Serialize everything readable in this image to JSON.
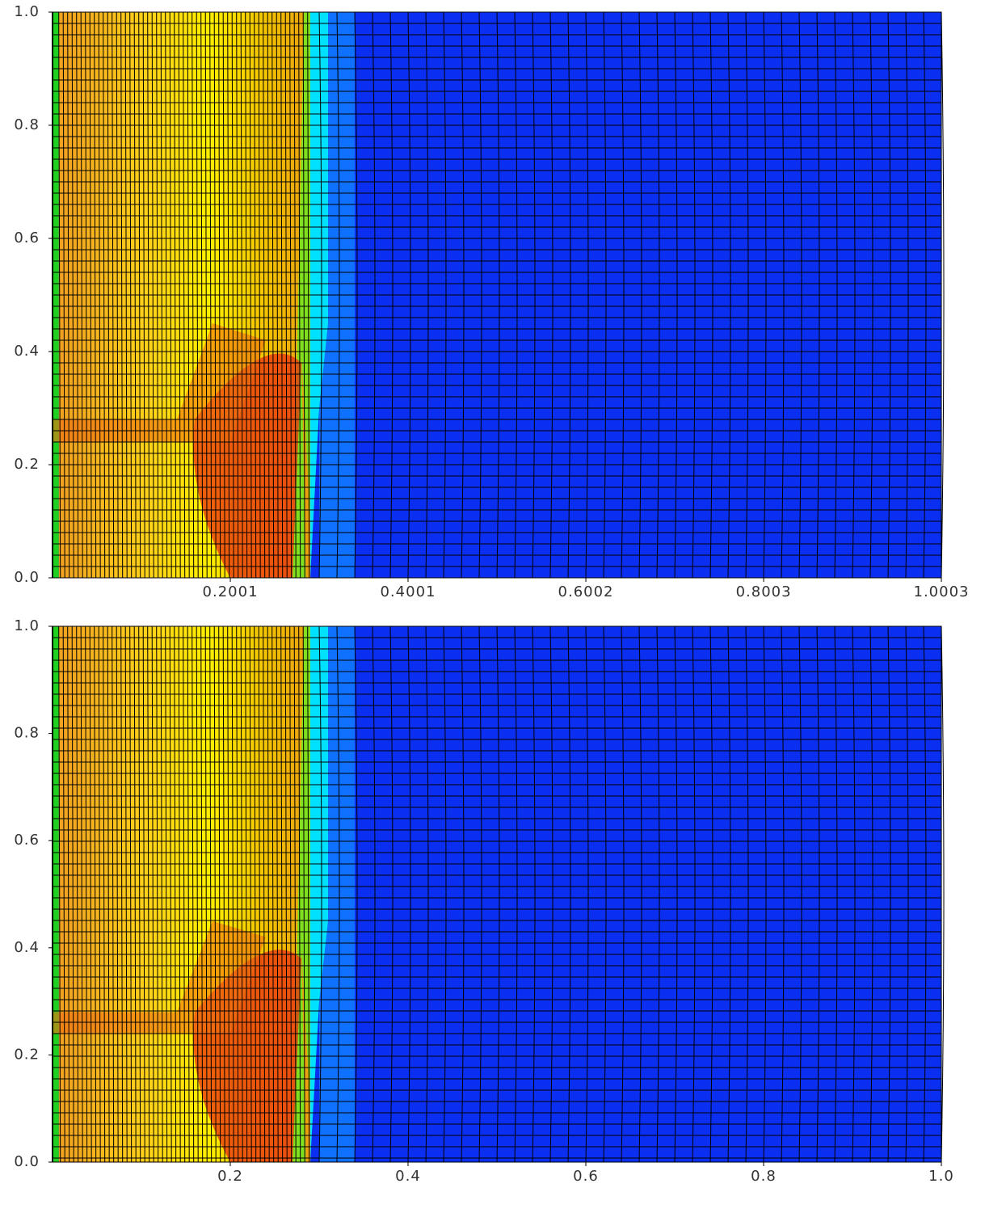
{
  "chart_data": [
    {
      "type": "mesh",
      "xlim": [
        0,
        1.0003
      ],
      "xticks": [
        0.2001,
        0.4001,
        0.6002,
        0.8003,
        1.0003
      ],
      "ylim": [
        0,
        1
      ],
      "yticks": [
        {
          "value": 0,
          "label": "0.0"
        },
        {
          "value": 0.2,
          "label": "0.2"
        },
        {
          "value": 0.4,
          "label": "0.4"
        },
        {
          "value": 0.6,
          "label": "0.6"
        },
        {
          "value": 0.8,
          "label": "0.8"
        },
        {
          "value": 1,
          "label": "1.0"
        }
      ]
    },
    {
      "type": "mesh",
      "xlim": [
        0,
        1
      ],
      "xticks": [
        {
          "value": 0.2,
          "label": "0.2"
        },
        {
          "value": 0.4,
          "label": "0.4"
        },
        {
          "value": 0.6,
          "label": "0.6"
        },
        {
          "value": 0.8,
          "label": "0.8"
        },
        {
          "value": 1,
          "label": "1.0"
        }
      ],
      "ylim": [
        0,
        1
      ],
      "yticks": [
        {
          "value": 0,
          "label": "0.0"
        },
        {
          "value": 0.2,
          "label": "0.2"
        },
        {
          "value": 0.4,
          "label": "0.4"
        },
        {
          "value": 0.6,
          "label": "0.6"
        },
        {
          "value": 0.8,
          "label": "0.8"
        },
        {
          "value": 1,
          "label": "1.0"
        }
      ]
    }
  ]
}
